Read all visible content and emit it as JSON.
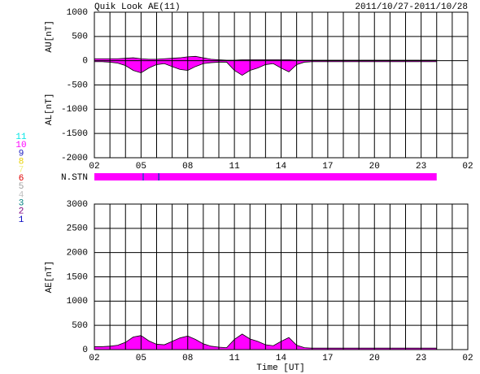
{
  "chart_data": [
    {
      "type": "area",
      "title": "Quik Look AE(11)",
      "subtitle": "2011/10/27-2011/10/28",
      "x": [
        2,
        2.5,
        3,
        3.5,
        4,
        4.5,
        5,
        5.5,
        6,
        6.5,
        7,
        7.5,
        8,
        8.5,
        9,
        9.5,
        10,
        10.5,
        11,
        11.5,
        12,
        12.5,
        13,
        13.5,
        14,
        14.5,
        15,
        15.5,
        16,
        16.5,
        17,
        17.5,
        18,
        18.5,
        19,
        19.5,
        20,
        20.5,
        21,
        21.5,
        22,
        22.5,
        23,
        23.5,
        24
      ],
      "series": [
        {
          "name": "AU[nT]",
          "color": "#ff00ff",
          "values": [
            40,
            40,
            40,
            40,
            50,
            60,
            40,
            30,
            30,
            40,
            50,
            60,
            80,
            90,
            60,
            30,
            20,
            10,
            10,
            20,
            20,
            20,
            20,
            20,
            20,
            20,
            10,
            10,
            10,
            10,
            10,
            10,
            10,
            10,
            10,
            10,
            10,
            10,
            10,
            10,
            10,
            10,
            10,
            10,
            10
          ]
        },
        {
          "name": "AL[nT]",
          "color": "#ff00ff",
          "values": [
            -20,
            -20,
            -30,
            -50,
            -100,
            -200,
            -250,
            -150,
            -80,
            -60,
            -120,
            -180,
            -200,
            -120,
            -60,
            -40,
            -30,
            -30,
            -200,
            -300,
            -200,
            -150,
            -80,
            -60,
            -150,
            -230,
            -80,
            -30,
            -20,
            -20,
            -20,
            -20,
            -20,
            -20,
            -20,
            -20,
            -20,
            -20,
            -20,
            -20,
            -20,
            -20,
            -20,
            -20,
            -20
          ]
        }
      ],
      "xlim": [
        2,
        26
      ],
      "xticks": [
        {
          "value": 2,
          "label": "02"
        },
        {
          "value": 5,
          "label": "05"
        },
        {
          "value": 8,
          "label": "08"
        },
        11,
        14,
        17,
        20,
        23,
        {
          "value": 26,
          "label": "02"
        }
      ],
      "xgrid": [
        2,
        3,
        4,
        5,
        6,
        7,
        8,
        9,
        10,
        11,
        12,
        13,
        14,
        15,
        16,
        17,
        18,
        19,
        20,
        21,
        22,
        23,
        24,
        25,
        26
      ],
      "ylim": [
        -2000,
        1000
      ],
      "yticks": [
        1000,
        500,
        0,
        -500,
        -1000,
        -1500,
        -2000
      ],
      "grid": true
    },
    {
      "type": "station_bar",
      "label": "N.STN",
      "bins": [
        2,
        5.1,
        5.18,
        6.1,
        6.18,
        24
      ],
      "counts": [
        10,
        9,
        10,
        9,
        10
      ],
      "xlim": [
        2,
        26
      ],
      "levels": [
        11,
        10,
        9,
        8,
        7,
        6,
        5,
        4,
        3,
        2,
        1
      ],
      "level_colors": [
        "#00e5e5",
        "#ff00ff",
        "#2020c0",
        "#e8d000",
        "#f0f080",
        "#e00000",
        "#a0a0a0",
        "#c0c0c0",
        "#008080",
        "#800080",
        "#0000c0"
      ]
    },
    {
      "type": "area",
      "xlabel": "Time [UT]",
      "x": [
        2,
        2.5,
        3,
        3.5,
        4,
        4.5,
        5,
        5.5,
        6,
        6.5,
        7,
        7.5,
        8,
        8.5,
        9,
        9.5,
        10,
        10.5,
        11,
        11.5,
        12,
        12.5,
        13,
        13.5,
        14,
        14.5,
        15,
        15.5,
        16,
        16.5,
        17,
        17.5,
        18,
        18.5,
        19,
        19.5,
        20,
        20.5,
        21,
        21.5,
        22,
        22.5,
        23,
        23.5,
        24
      ],
      "series": [
        {
          "name": "AE[nT]",
          "color": "#ff00ff",
          "values": [
            60,
            60,
            70,
            90,
            150,
            260,
            290,
            180,
            110,
            100,
            170,
            240,
            280,
            210,
            120,
            70,
            50,
            40,
            210,
            320,
            220,
            170,
            100,
            80,
            170,
            250,
            90,
            40,
            30,
            30,
            30,
            30,
            30,
            30,
            30,
            30,
            30,
            30,
            30,
            30,
            30,
            30,
            30,
            30,
            30
          ]
        }
      ],
      "xlim": [
        2,
        26
      ],
      "xticks": [
        {
          "value": 2,
          "label": "02"
        },
        {
          "value": 5,
          "label": "05"
        },
        {
          "value": 8,
          "label": "08"
        },
        11,
        14,
        17,
        20,
        23,
        {
          "value": 26,
          "label": "02"
        }
      ],
      "xgrid": [
        2,
        3,
        4,
        5,
        6,
        7,
        8,
        9,
        10,
        11,
        12,
        13,
        14,
        15,
        16,
        17,
        18,
        19,
        20,
        21,
        22,
        23,
        24,
        25,
        26
      ],
      "ylim": [
        0,
        3000
      ],
      "yticks": [
        3000,
        2500,
        2000,
        1500,
        1000,
        500,
        0
      ],
      "grid": true
    }
  ]
}
